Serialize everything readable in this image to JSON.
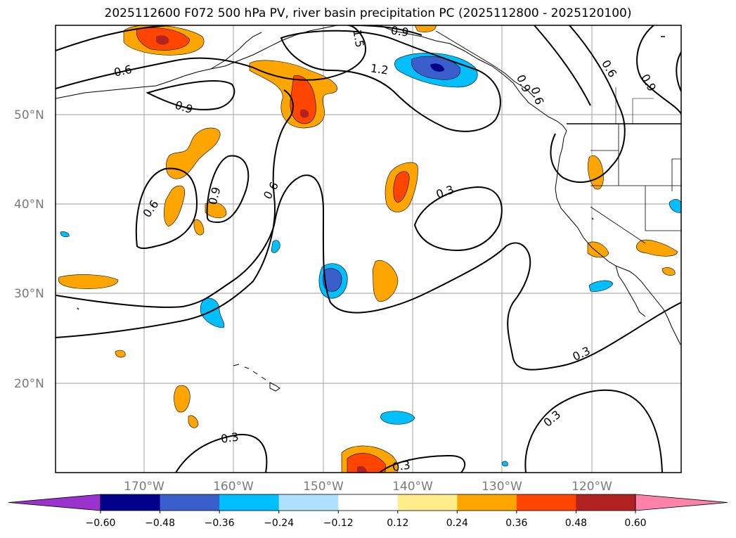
{
  "title": "2025112600 F072 500 hPa PV, river basin precipitation PC (2025112800 - 2025120100)",
  "lon_labels": [
    "170°W",
    "160°W",
    "150°W",
    "140°W",
    "130°W",
    "120°W"
  ],
  "lat_labels": [
    "50°N",
    "40°N",
    "30°N",
    "20°N"
  ],
  "contour_labels": [
    "0.6",
    "0.9",
    "1.5",
    "0.9",
    "1.2",
    "0.6",
    "0.9",
    "0.6",
    "0.9",
    "0.6",
    "0.6",
    "0.9",
    "0.3",
    "0.3",
    "0.3",
    "0.3",
    "0.3"
  ],
  "colorbar": {
    "ticks": [
      "−0.60",
      "−0.48",
      "−0.36",
      "−0.24",
      "−0.12",
      "0.12",
      "0.24",
      "0.36",
      "0.48",
      "0.60"
    ],
    "colors": [
      "#9a32cd",
      "#00008b",
      "#3a5fcd",
      "#00bfff",
      "#b0e2ff",
      "#ffffff",
      "#ffec8b",
      "#ffa500",
      "#ff4500",
      "#b22222",
      "#ff82ab"
    ]
  }
}
